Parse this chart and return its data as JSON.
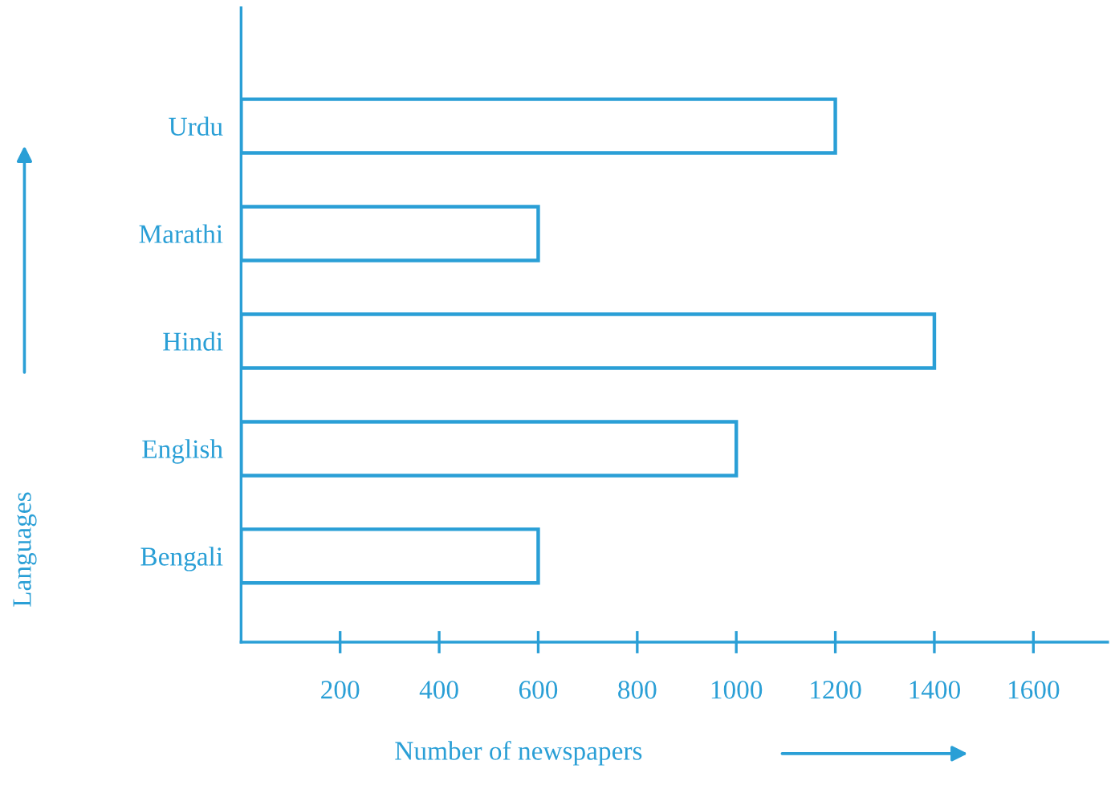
{
  "chart_data": {
    "type": "bar",
    "orientation": "horizontal",
    "categories": [
      "Urdu",
      "Marathi",
      "Hindi",
      "English",
      "Bengali"
    ],
    "values": [
      1200,
      600,
      1400,
      1000,
      600
    ],
    "color": "#2a9fd6",
    "xlim": [
      0,
      1750
    ],
    "xticks": [
      200,
      400,
      600,
      800,
      1000,
      1200,
      1400,
      1600
    ],
    "xlabel": "Number of newspapers",
    "ylabel": "Languages",
    "grid": false
  }
}
